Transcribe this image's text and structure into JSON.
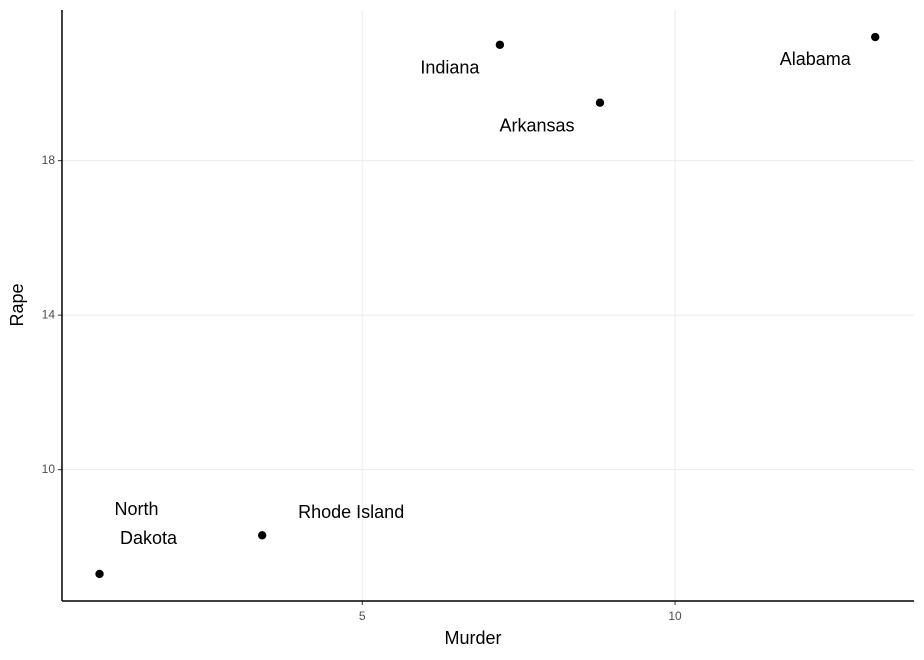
{
  "chart_data": {
    "type": "scatter",
    "x_label": "Murder",
    "y_label": "Rape",
    "labels": [
      "Alabama",
      "Indiana",
      "Arkansas",
      "Rhode Island",
      "North Dakota"
    ],
    "series": [
      {
        "color": "#000000",
        "x": [
          13.2,
          7.2,
          8.8,
          3.4,
          0.8
        ],
        "values": [
          21.2,
          21.0,
          19.5,
          8.3,
          7.3
        ]
      }
    ],
    "xlim": [
      0.2,
      13.82
    ],
    "ylim": [
      6.6,
      21.9
    ],
    "xticks": [
      5,
      10
    ],
    "yticks": [
      10,
      14,
      18
    ],
    "grid": true
  }
}
